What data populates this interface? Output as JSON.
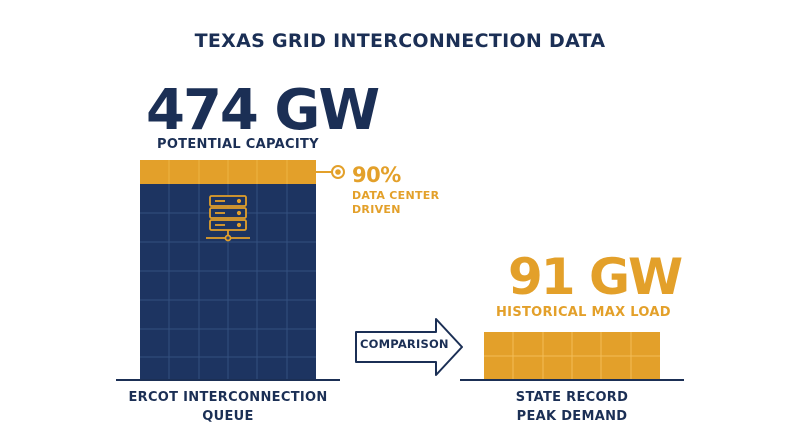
{
  "title": "TEXAS GRID INTERCONNECTION DATA",
  "left": {
    "value": "474 GW",
    "label": "POTENTIAL CAPACITY",
    "caption_line1": "ERCOT INTERCONNECTION",
    "caption_line2": "QUEUE"
  },
  "callout": {
    "percent": "90%",
    "line1": "DATA CENTER",
    "line2": "DRIVEN",
    "icon": "server-rack-icon"
  },
  "comparison": {
    "label": "COMPARISON",
    "icon": "arrow-right-icon"
  },
  "right": {
    "value": "91 GW",
    "label": "HISTORICAL MAX LOAD",
    "caption_line1": "STATE RECORD",
    "caption_line2": "PEAK DEMAND"
  },
  "colors": {
    "navy": "#1b2f55",
    "orange": "#e3a02a"
  }
}
